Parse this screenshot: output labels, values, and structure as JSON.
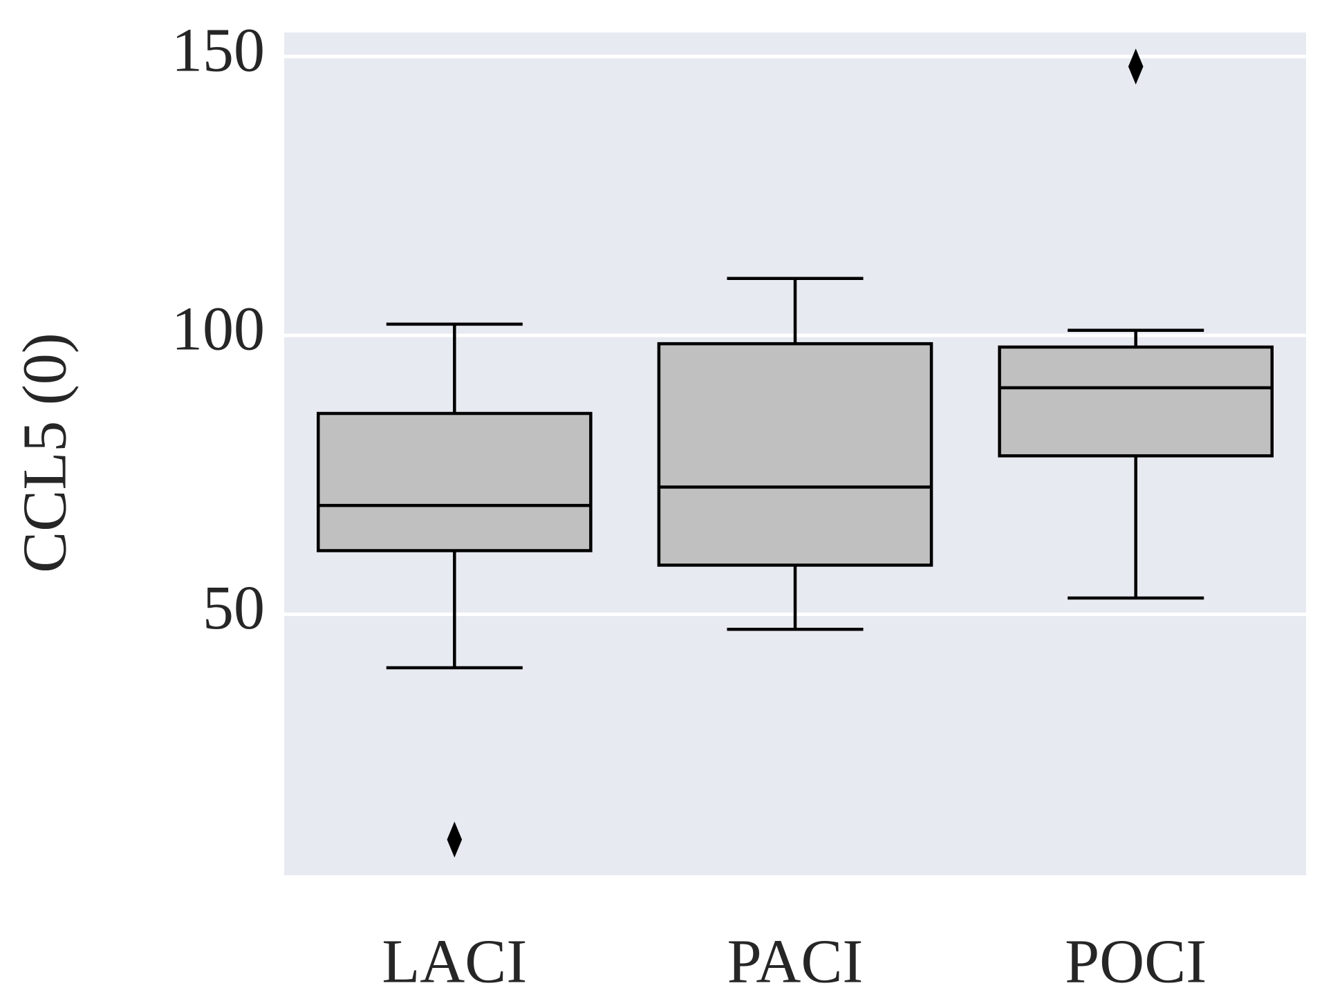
{
  "chart_data": {
    "type": "box",
    "y_label": "CCL5 (0)",
    "categories": [
      "LACI",
      "PACI",
      "POCI"
    ],
    "boxes": [
      {
        "whislo": 40.4,
        "q1": 61.4,
        "med": 69.5,
        "q3": 86.0,
        "whishi": 102.0,
        "fliers": [
          9.6
        ]
      },
      {
        "whislo": 47.3,
        "q1": 58.8,
        "med": 72.8,
        "q3": 98.5,
        "whishi": 110.2,
        "fliers": []
      },
      {
        "whislo": 52.9,
        "q1": 78.4,
        "med": 90.6,
        "q3": 97.9,
        "whishi": 100.9,
        "fliers": [
          148.2
        ]
      }
    ],
    "color": "#c0c0c0",
    "ylim": [
      3.2,
      154.3
    ],
    "yticks": [
      50,
      100,
      150
    ],
    "grid": true
  }
}
